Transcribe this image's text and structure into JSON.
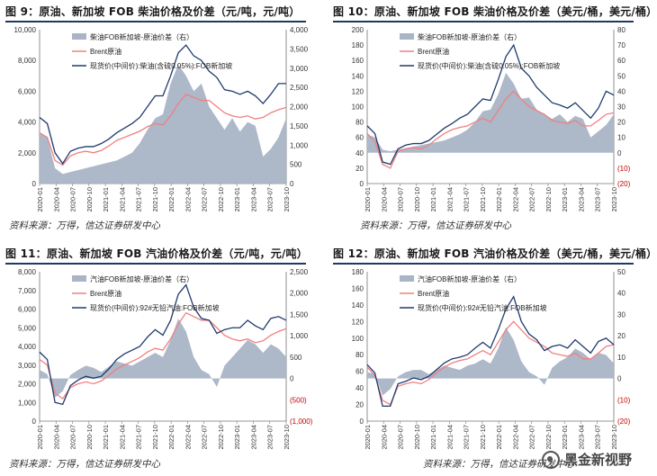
{
  "panels": [
    {
      "title": "图 9：原油、新加坡 FOB 柴油价格及价差（元/吨，元/吨）",
      "source": "资料来源：万得，信达证券研发中心"
    },
    {
      "title": "图 10：原油、新加坡 FOB 柴油价格及价差（美元/桶，美元/桶）",
      "source": "资料来源：万得，信达证券研发中心"
    },
    {
      "title": "图 11：原油、新加坡 FOB 汽油价格及价差（元/吨，元/吨）",
      "source": "资料来源：万得，信达证券研发中心"
    },
    {
      "title": "图 12：原油、新加坡 FOB 汽油价格及价差（美元/桶，美元/桶）",
      "source": "资料来源：万得，信达证券研发中心"
    }
  ],
  "watermark": {
    "text": "黑金新视野",
    "icon": "wechat-icon"
  },
  "colors": {
    "spread": "#a9b4c6",
    "brent": "#f08080",
    "spot": "#1f3a6e",
    "negative_tick": "#c00000",
    "title_rule": "#1f3864"
  },
  "chart_data": [
    {
      "type": "area+line",
      "x_ticks": [
        "2020-01",
        "2020-04",
        "2020-07",
        "2020-10",
        "2021-01",
        "2021-04",
        "2021-07",
        "2021-10",
        "2022-01",
        "2022-04",
        "2022-07",
        "2022-10",
        "2023-01",
        "2023-04",
        "2023-07",
        "2023-10"
      ],
      "y_left_ticks": [
        "0",
        "2,000",
        "4,000",
        "6,000",
        "8,000",
        "10,000"
      ],
      "y_right_ticks": [
        "0",
        "500",
        "1,000",
        "1,500",
        "2,000",
        "2,500",
        "3,000",
        "3,500",
        "4,000"
      ],
      "y_left_range": [
        0,
        10000
      ],
      "y_right_range": [
        0,
        4000
      ],
      "series": [
        {
          "name": "柴油FOB新加坡-原油价差（右）",
          "axis": "right",
          "kind": "area",
          "values": [
            1300,
            1200,
            400,
            250,
            300,
            350,
            400,
            450,
            500,
            550,
            600,
            700,
            800,
            1050,
            1400,
            1700,
            1800,
            2600,
            3100,
            2800,
            2400,
            2600,
            2000,
            1700,
            1400,
            1700,
            1350,
            1600,
            1500,
            700,
            900,
            1200,
            1700
          ]
        },
        {
          "name": "Brent原油",
          "axis": "left",
          "values": [
            3300,
            3000,
            1500,
            1200,
            1800,
            2000,
            2100,
            2000,
            2150,
            2450,
            2800,
            3000,
            3200,
            3400,
            3700,
            3900,
            3800,
            4400,
            5200,
            5800,
            5600,
            5400,
            5400,
            5000,
            4600,
            4400,
            4300,
            4400,
            4200,
            4300,
            4600,
            4800,
            4950
          ]
        },
        {
          "name": "现货价(中间价):柴油(含硫0.05%):FOB新加坡",
          "axis": "left",
          "values": [
            4300,
            3900,
            2000,
            1300,
            2100,
            2300,
            2400,
            2400,
            2600,
            2900,
            3300,
            3600,
            3900,
            4300,
            5000,
            5700,
            5700,
            7000,
            8500,
            9000,
            8300,
            8000,
            7300,
            6900,
            6100,
            6000,
            5800,
            6000,
            5700,
            5200,
            5800,
            6500,
            6500
          ]
        }
      ]
    },
    {
      "type": "area+line",
      "x_ticks": [
        "2020-01",
        "2020-04",
        "2020-07",
        "2020-10",
        "2021-01",
        "2021-04",
        "2021-07",
        "2021-10",
        "2022-01",
        "2022-04",
        "2022-07",
        "2022-10",
        "2023-01",
        "2023-04",
        "2023-07",
        "2023-10"
      ],
      "y_left_ticks": [
        "0",
        "20",
        "40",
        "60",
        "80",
        "100",
        "120",
        "140",
        "160",
        "180",
        "200"
      ],
      "y_right_ticks": [
        "(20)",
        "(10)",
        "0",
        "10",
        "20",
        "30",
        "40",
        "50",
        "60",
        "70",
        "80"
      ],
      "y_left_range": [
        0,
        200
      ],
      "y_right_range": [
        -20,
        80
      ],
      "series": [
        {
          "name": "柴油FOB新加坡-原油价差（右）",
          "axis": "right",
          "kind": "area",
          "values": [
            12,
            10,
            2,
            1,
            2,
            3,
            4,
            5,
            6,
            7,
            8,
            10,
            12,
            15,
            20,
            27,
            28,
            38,
            52,
            45,
            35,
            36,
            28,
            25,
            22,
            25,
            20,
            24,
            22,
            10,
            14,
            18,
            25
          ]
        },
        {
          "name": "Brent原油",
          "axis": "left",
          "values": [
            65,
            55,
            25,
            20,
            42,
            45,
            47,
            45,
            50,
            58,
            65,
            70,
            73,
            75,
            80,
            85,
            80,
            95,
            110,
            120,
            110,
            100,
            95,
            90,
            82,
            80,
            78,
            82,
            75,
            75,
            82,
            90,
            92
          ]
        },
        {
          "name": "现货价(中间价):柴油(含硫0.05%):FOB新加坡",
          "axis": "left",
          "values": [
            75,
            65,
            28,
            25,
            45,
            50,
            52,
            52,
            56,
            64,
            72,
            78,
            85,
            90,
            100,
            110,
            108,
            135,
            165,
            180,
            150,
            140,
            125,
            115,
            105,
            102,
            98,
            105,
            95,
            85,
            98,
            120,
            115
          ]
        }
      ]
    },
    {
      "type": "area+line",
      "x_ticks": [
        "2020-01",
        "2020-04",
        "2020-07",
        "2020-10",
        "2021-01",
        "2021-04",
        "2021-07",
        "2021-10",
        "2022-01",
        "2022-04",
        "2022-07",
        "2022-10",
        "2023-01",
        "2023-04",
        "2023-07",
        "2023-10"
      ],
      "y_left_ticks": [
        "0",
        "1,000",
        "2,000",
        "3,000",
        "4,000",
        "5,000",
        "6,000",
        "7,000",
        "8,000"
      ],
      "y_right_ticks": [
        "(1,000)",
        "(500)",
        "0",
        "500",
        "1,000",
        "1,500",
        "2,000",
        "2,500"
      ],
      "y_left_range": [
        0,
        8000
      ],
      "y_right_range": [
        -1000,
        2500
      ],
      "series": [
        {
          "name": "汽油FOB新加坡-原油价差（右）",
          "axis": "right",
          "kind": "area",
          "values": [
            200,
            100,
            -450,
            -300,
            80,
            200,
            300,
            250,
            150,
            280,
            400,
            350,
            300,
            400,
            500,
            600,
            500,
            900,
            1400,
            1100,
            500,
            200,
            100,
            -200,
            300,
            500,
            700,
            900,
            800,
            600,
            800,
            700,
            500
          ]
        },
        {
          "name": "Brent原油",
          "axis": "left",
          "values": [
            3300,
            3000,
            1500,
            1200,
            1800,
            2000,
            2100,
            2000,
            2150,
            2450,
            2800,
            3000,
            3200,
            3400,
            3700,
            3900,
            3800,
            4400,
            5200,
            5800,
            5600,
            5400,
            5400,
            5000,
            4600,
            4400,
            4300,
            4400,
            4200,
            4300,
            4600,
            4800,
            4950
          ]
        },
        {
          "name": "现货价(中间价):92#无铅汽油:FOB新加坡",
          "axis": "left",
          "values": [
            3700,
            3300,
            1000,
            900,
            1900,
            2200,
            2400,
            2300,
            2400,
            2800,
            3300,
            3600,
            3800,
            4000,
            4500,
            4900,
            4600,
            5400,
            6800,
            7300,
            6100,
            5500,
            5400,
            4700,
            4900,
            5000,
            5000,
            5400,
            5100,
            4900,
            5500,
            5600,
            5400
          ]
        }
      ]
    },
    {
      "type": "area+line",
      "x_ticks": [
        "2020-01",
        "2020-04",
        "2020-07",
        "2020-10",
        "2021-01",
        "2021-04",
        "2021-07",
        "2021-10",
        "2022-01",
        "2022-04",
        "2022-07",
        "2022-10",
        "2023-01",
        "2023-04",
        "2023-07",
        "2023-10"
      ],
      "y_left_ticks": [
        "0",
        "20",
        "40",
        "60",
        "80",
        "100",
        "120",
        "140",
        "160",
        "180"
      ],
      "y_right_ticks": [
        "(20)",
        "(10)",
        "0",
        "10",
        "20",
        "30",
        "40",
        "50"
      ],
      "y_left_range": [
        0,
        180
      ],
      "y_right_range": [
        -20,
        50
      ],
      "series": [
        {
          "name": "汽油FOB新加坡-原油价差（右）",
          "axis": "right",
          "kind": "area",
          "values": [
            3,
            2,
            -8,
            -5,
            1,
            3,
            4,
            4,
            2,
            4,
            6,
            5,
            4,
            6,
            7,
            9,
            7,
            14,
            24,
            18,
            8,
            3,
            1,
            -3,
            5,
            8,
            10,
            14,
            12,
            9,
            12,
            11,
            7
          ]
        },
        {
          "name": "Brent原油",
          "axis": "left",
          "values": [
            65,
            55,
            25,
            20,
            42,
            45,
            47,
            45,
            50,
            58,
            65,
            70,
            73,
            75,
            80,
            85,
            80,
            95,
            110,
            120,
            110,
            100,
            95,
            90,
            82,
            80,
            78,
            82,
            75,
            75,
            82,
            90,
            92
          ]
        },
        {
          "name": "现货价(中间价):92#无铅汽油:FOB新加坡",
          "axis": "left",
          "values": [
            68,
            58,
            18,
            18,
            45,
            48,
            52,
            50,
            54,
            62,
            70,
            75,
            77,
            80,
            88,
            95,
            88,
            110,
            135,
            150,
            120,
            105,
            98,
            85,
            90,
            92,
            88,
            98,
            90,
            82,
            96,
            100,
            92
          ]
        }
      ]
    }
  ]
}
